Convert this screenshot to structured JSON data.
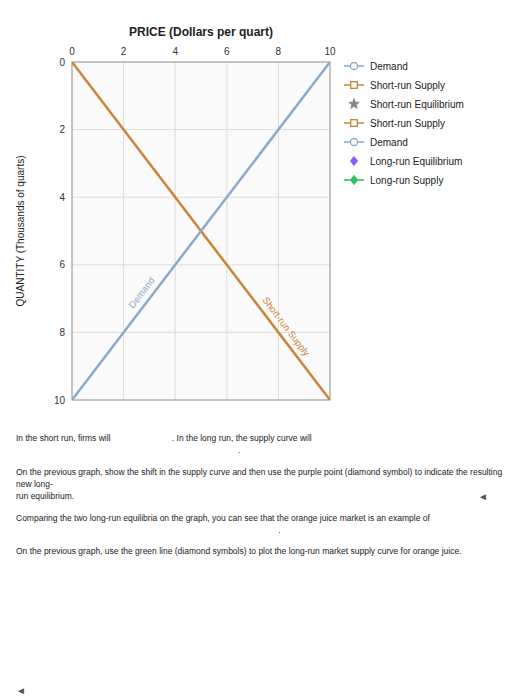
{
  "chart_data": {
    "type": "line",
    "title": "PRICE (Dollars per quart)",
    "y_label": "QUANTITY (Thousands of quarts)",
    "x": [
      0,
      10
    ],
    "series": [
      {
        "name": "Short-run Supply",
        "color": "#c8843a",
        "values": [
          0,
          10
        ]
      },
      {
        "name": "Demand",
        "color": "#8ca9c8",
        "values": [
          10,
          0
        ]
      }
    ],
    "xlim": [
      0,
      10
    ],
    "ylim": [
      10,
      0
    ],
    "xticks": [
      0,
      2,
      4,
      6,
      8,
      10
    ],
    "yticks": [
      0,
      2,
      4,
      6,
      8,
      10
    ],
    "grid": true,
    "legend": "right",
    "legend_entries": [
      {
        "name": "Demand",
        "color": "#8ca9c8",
        "marker": "open-circle",
        "line_style": "solid"
      },
      {
        "name": "Short-run Supply",
        "color": "#c8843a",
        "marker": "open-square",
        "line_style": "solid"
      },
      {
        "name": "Short-run Equilibrium",
        "color": "#888888",
        "marker": "star",
        "line_style": "none"
      },
      {
        "name": "Short-run Supply",
        "color": "#c8843a",
        "marker": "open-square",
        "line_style": "solid"
      },
      {
        "name": "Demand",
        "color": "#8ca9c8",
        "marker": "open-circle",
        "line_style": "solid"
      },
      {
        "name": "Long-run Equilibrium",
        "color": "#8b5cf6",
        "marker": "diamond",
        "line_style": "none"
      },
      {
        "name": "Long-run Supply",
        "color": "#22c55e",
        "marker": "diamond",
        "line_style": "solid"
      }
    ],
    "notes": [
      [
        "In the short run, firms will                          . In the long run, the supply curve will",
        "                                                                                              ."
      ],
      [
        "On the previous graph, show the shift in the supply curve and then use the purple point (diamond symbol) to indicate the resulting new long-",
        "run equilibrium."
      ],
      [
        "Comparing the two long-run equilibria on the graph, you can see that the orange juice market is an example of",
        "                                                                                                               ."
      ],
      [
        "On the previous graph, use the green line (diamond symbols) to plot the long-run market supply curve for orange juice."
      ]
    ],
    "annotations": [
      "◄",
      "◄"
    ]
  }
}
